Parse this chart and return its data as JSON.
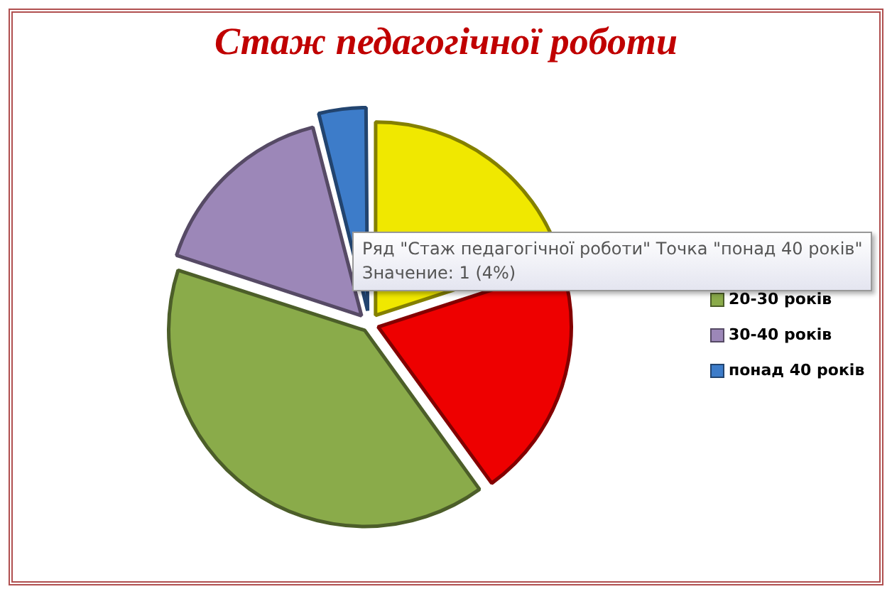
{
  "chart_data": {
    "type": "pie",
    "title": "Стаж педагогічної роботи",
    "categories": [
      null,
      null,
      "20-30 років",
      "30-40 років",
      "понад 40 років"
    ],
    "values": [
      20,
      20,
      40,
      16,
      4
    ],
    "colors": [
      "#f0e800",
      "#ee0000",
      "#8aab4a",
      "#9c87b8",
      "#3d7cc9"
    ],
    "legend": "right",
    "annotations": [
      "Ряд \"Стаж педагогічної роботи\" Точка \"понад 40 років\"",
      "Значение: 1 (4%)"
    ]
  }
}
